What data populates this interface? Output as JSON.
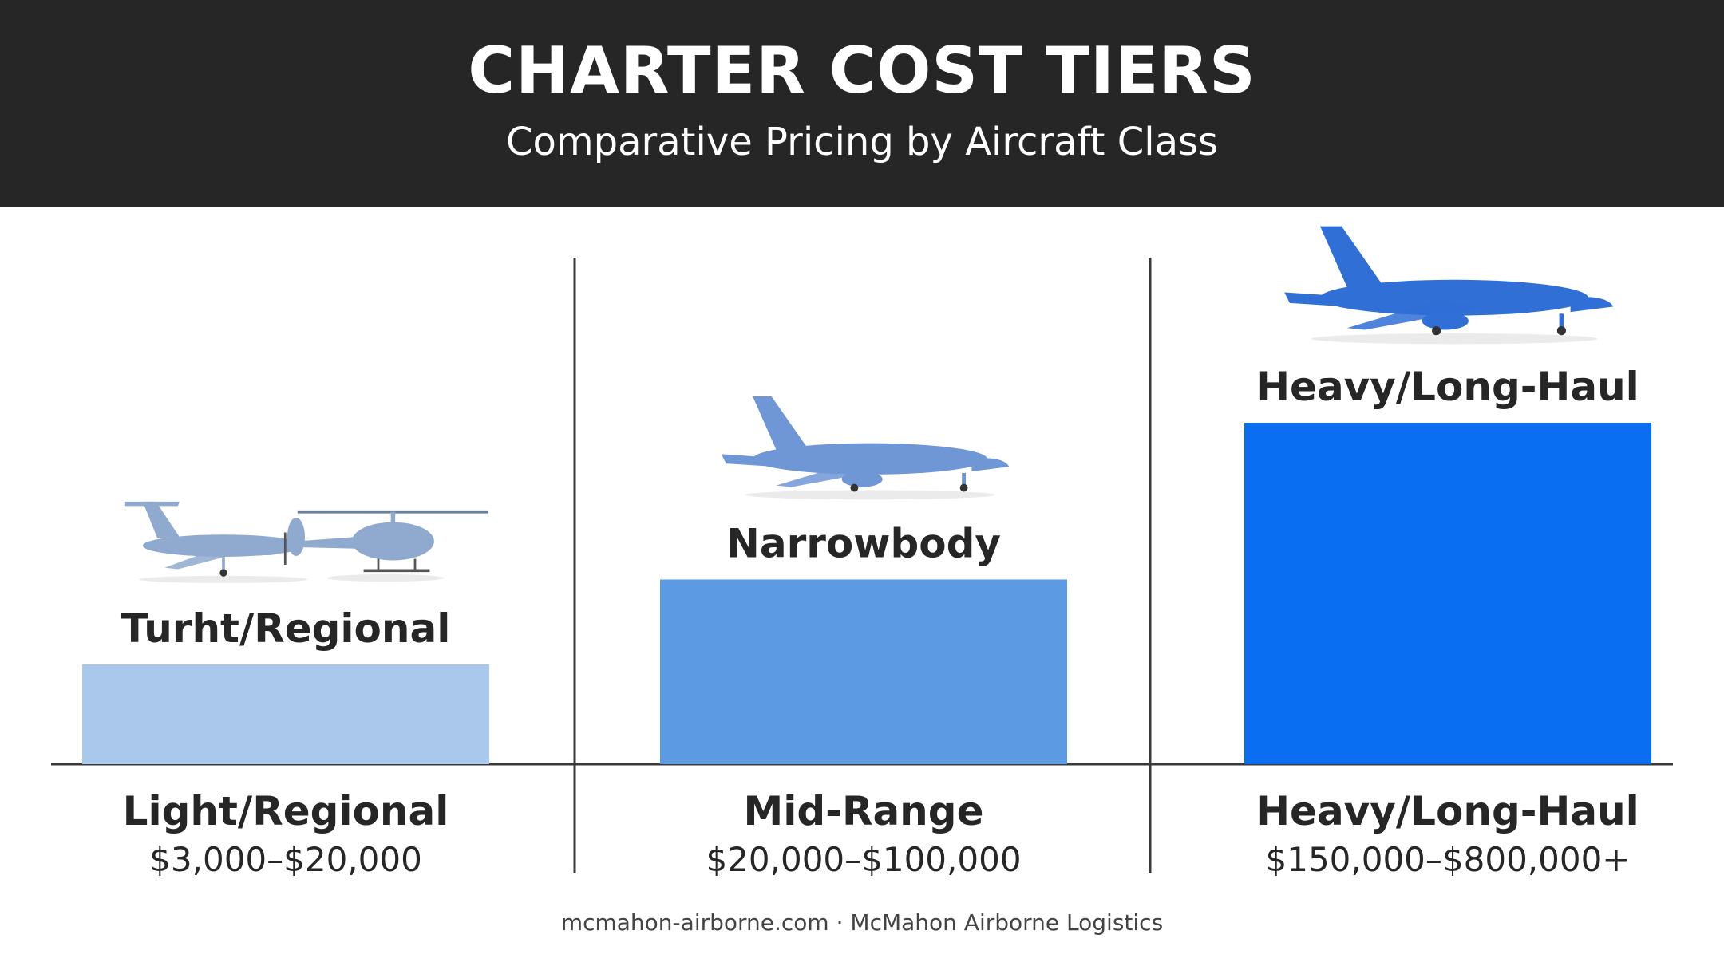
{
  "header": {
    "title": "CHARTER COST TIERS",
    "subtitle": "Comparative Pricing by Aircraft Class"
  },
  "chart_data": {
    "type": "bar",
    "categories": [
      "Light/Regional",
      "Mid-Range",
      "Heavy/Long-Haul"
    ],
    "bar_labels": [
      "Turht/Regional",
      "Narrowbody",
      "Heavy/Long-Haul"
    ],
    "price_labels": [
      "$3,000–$20,000",
      "$20,000–$100,000",
      "$150,000–$800,000+"
    ],
    "values": [
      1,
      1.85,
      3.42
    ],
    "bar_colors": [
      "#aac8ec",
      "#5c9be4",
      "#0a6ef2"
    ],
    "aircraft_icons": [
      "turboprop-and-helicopter-icon",
      "narrowbody-jet-icon",
      "jumbo-jet-icon"
    ],
    "ylim": [
      0,
      3.42
    ],
    "grid": false
  },
  "footer": {
    "text": "mcmahon-airborne.com · McMahon Airborne Logistics"
  }
}
